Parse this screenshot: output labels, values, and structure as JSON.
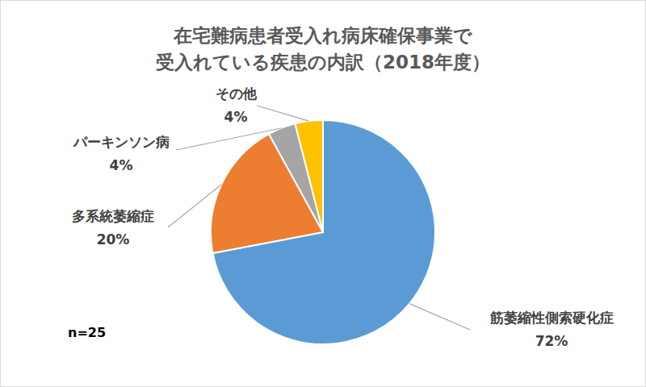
{
  "chart_data": {
    "type": "pie",
    "title": "在宅難病患者受入れ病床確保事業で\n受入れている疾患の内訳（2018年度）",
    "categories": [
      "筋萎縮性側索硬化症",
      "多系統萎縮症",
      "パーキンソン病",
      "その他"
    ],
    "values": [
      72,
      20,
      4,
      4
    ],
    "value_labels": [
      "72%",
      "20%",
      "4%",
      "4%"
    ],
    "colors": [
      "#5b9bd5",
      "#ed7d31",
      "#a5a5a5",
      "#ffc000"
    ],
    "data_labels": true,
    "annotation": "n=25"
  }
}
